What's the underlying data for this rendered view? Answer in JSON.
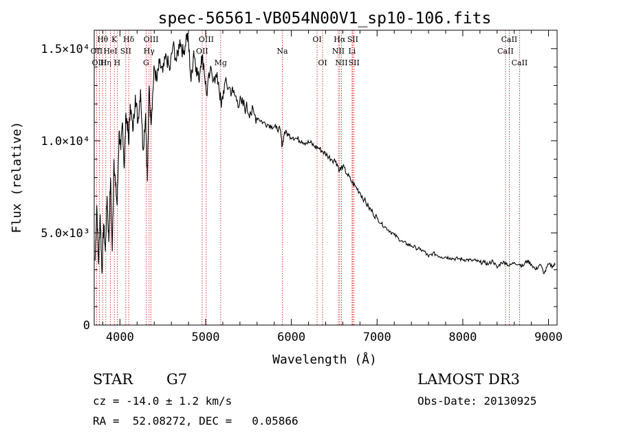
{
  "chart_data": {
    "type": "line",
    "title": "spec-56561-VB054N00V1_sp10-106.fits",
    "xlabel": "Wavelength (Å)",
    "ylabel": "Flux (relative)",
    "xlim": [
      3700,
      9100
    ],
    "ylim": [
      0,
      16000
    ],
    "x_ticks": [
      4000,
      5000,
      6000,
      7000,
      8000,
      9000
    ],
    "x_tick_labels": [
      "4000",
      "5000",
      "6000",
      "7000",
      "8000",
      "9000"
    ],
    "y_ticks": [
      0,
      5000,
      10000,
      15000
    ],
    "y_tick_labels": [
      "0",
      "5.0×10³",
      "1.0×10⁴",
      "1.5×10⁴"
    ],
    "series": [
      {
        "name": "spectrum",
        "x": [
          3710,
          3730,
          3750,
          3770,
          3790,
          3810,
          3830,
          3850,
          3870,
          3890,
          3910,
          3930,
          3950,
          3968,
          3990,
          4010,
          4030,
          4050,
          4070,
          4090,
          4102,
          4120,
          4150,
          4180,
          4210,
          4240,
          4270,
          4300,
          4320,
          4340,
          4360,
          4380,
          4400,
          4430,
          4460,
          4500,
          4540,
          4580,
          4620,
          4660,
          4700,
          4740,
          4780,
          4800,
          4830,
          4861,
          4890,
          4920,
          4950,
          4980,
          5010,
          5050,
          5100,
          5150,
          5183,
          5220,
          5270,
          5320,
          5370,
          5420,
          5470,
          5520,
          5570,
          5620,
          5670,
          5720,
          5770,
          5820,
          5870,
          5893,
          5920,
          5970,
          6020,
          6070,
          6120,
          6170,
          6220,
          6270,
          6320,
          6370,
          6420,
          6470,
          6520,
          6563,
          6600,
          6650,
          6700,
          6750,
          6800,
          6850,
          6900,
          6950,
          7000,
          7050,
          7100,
          7150,
          7200,
          7250,
          7300,
          7350,
          7400,
          7450,
          7500,
          7550,
          7600,
          7650,
          7700,
          7750,
          7800,
          7850,
          7900,
          7950,
          8000,
          8050,
          8100,
          8150,
          8200,
          8250,
          8300,
          8350,
          8400,
          8450,
          8498,
          8542,
          8600,
          8662,
          8700,
          8750,
          8800,
          8850,
          8900,
          8950,
          9000,
          9050,
          9080
        ],
        "y": [
          3500,
          6500,
          3300,
          6000,
          2800,
          5500,
          4000,
          7000,
          4500,
          8000,
          4000,
          9000,
          7500,
          6500,
          10500,
          9500,
          11000,
          8500,
          11500,
          10800,
          9800,
          12000,
          10500,
          12500,
          11000,
          12800,
          9500,
          11500,
          7800,
          13000,
          11000,
          12300,
          14000,
          13200,
          14200,
          13700,
          14600,
          13800,
          15200,
          14300,
          15500,
          14700,
          15800,
          15300,
          13200,
          14900,
          14000,
          13300,
          14600,
          14100,
          12500,
          13700,
          13500,
          13200,
          11800,
          13100,
          12900,
          12600,
          12200,
          12000,
          11800,
          11600,
          11400,
          11200,
          11000,
          10900,
          10800,
          10700,
          10600,
          9700,
          10500,
          10300,
          10200,
          10100,
          10000,
          9900,
          9900,
          9700,
          9600,
          9400,
          9200,
          9000,
          8900,
          8400,
          8600,
          8200,
          7800,
          7500,
          7200,
          6800,
          6400,
          6100,
          5800,
          5500,
          5300,
          5100,
          4900,
          4700,
          4500,
          4400,
          4300,
          4200,
          4100,
          4000,
          3700,
          3900,
          3800,
          3700,
          3700,
          3650,
          3600,
          3600,
          3550,
          3550,
          3500,
          3500,
          3400,
          3400,
          3300,
          3500,
          3100,
          3400,
          3400,
          3200,
          3400,
          3300,
          3200,
          3500,
          3300,
          3000,
          3300,
          2800,
          3300,
          3200,
          3300
        ]
      }
    ],
    "lines": [
      {
        "name": "Hθ",
        "x": 3798,
        "row": 1
      },
      {
        "name": "OII",
        "x": 3727,
        "row": 2
      },
      {
        "name": "OIII",
        "x": 3760,
        "row": 3
      },
      {
        "name": "Hη",
        "x": 3835,
        "row": 3
      },
      {
        "name": "HeI",
        "x": 3889,
        "row": 2
      },
      {
        "name": "K",
        "x": 3934,
        "row": 1
      },
      {
        "name": "SII",
        "x": 4068,
        "row": 2
      },
      {
        "name": "H",
        "x": 3968,
        "row": 3
      },
      {
        "name": "Hδ",
        "x": 4102,
        "row": 1
      },
      {
        "name": "OIII",
        "x": 4363,
        "row": 1
      },
      {
        "name": "Hγ",
        "x": 4340,
        "row": 2
      },
      {
        "name": "G",
        "x": 4305,
        "row": 3
      },
      {
        "name": "OIII",
        "x": 5007,
        "row": 1
      },
      {
        "name": "OII",
        "x": 4959,
        "row": 2
      },
      {
        "name": "Mg",
        "x": 5175,
        "row": 3
      },
      {
        "name": "Na",
        "x": 5894,
        "row": 2
      },
      {
        "name": "OI",
        "x": 6300,
        "row": 1
      },
      {
        "name": "OI",
        "x": 6364,
        "row": 3
      },
      {
        "name": "Hα",
        "x": 6563,
        "row": 1
      },
      {
        "name": "SII",
        "x": 6716,
        "row": 1
      },
      {
        "name": "NII",
        "x": 6548,
        "row": 2
      },
      {
        "name": "Li",
        "x": 6708,
        "row": 2
      },
      {
        "name": "NII",
        "x": 6584,
        "row": 3
      },
      {
        "name": "SII",
        "x": 6731,
        "row": 3
      },
      {
        "name": "CaII",
        "x": 8542,
        "row": 1
      },
      {
        "name": "CaII",
        "x": 8498,
        "row": 2
      },
      {
        "name": "CaII",
        "x": 8662,
        "row": 3
      }
    ],
    "line_color": "#cc0000",
    "series_color": "#000000"
  },
  "info": {
    "class": "STAR",
    "subclass": "G7",
    "survey": "LAMOST DR3",
    "redshift": "cz = -14.0 ± 1.2 km/s",
    "obs_date": "Obs-Date: 20130925",
    "coords": "RA =  52.08272, DEC =   0.05866"
  }
}
